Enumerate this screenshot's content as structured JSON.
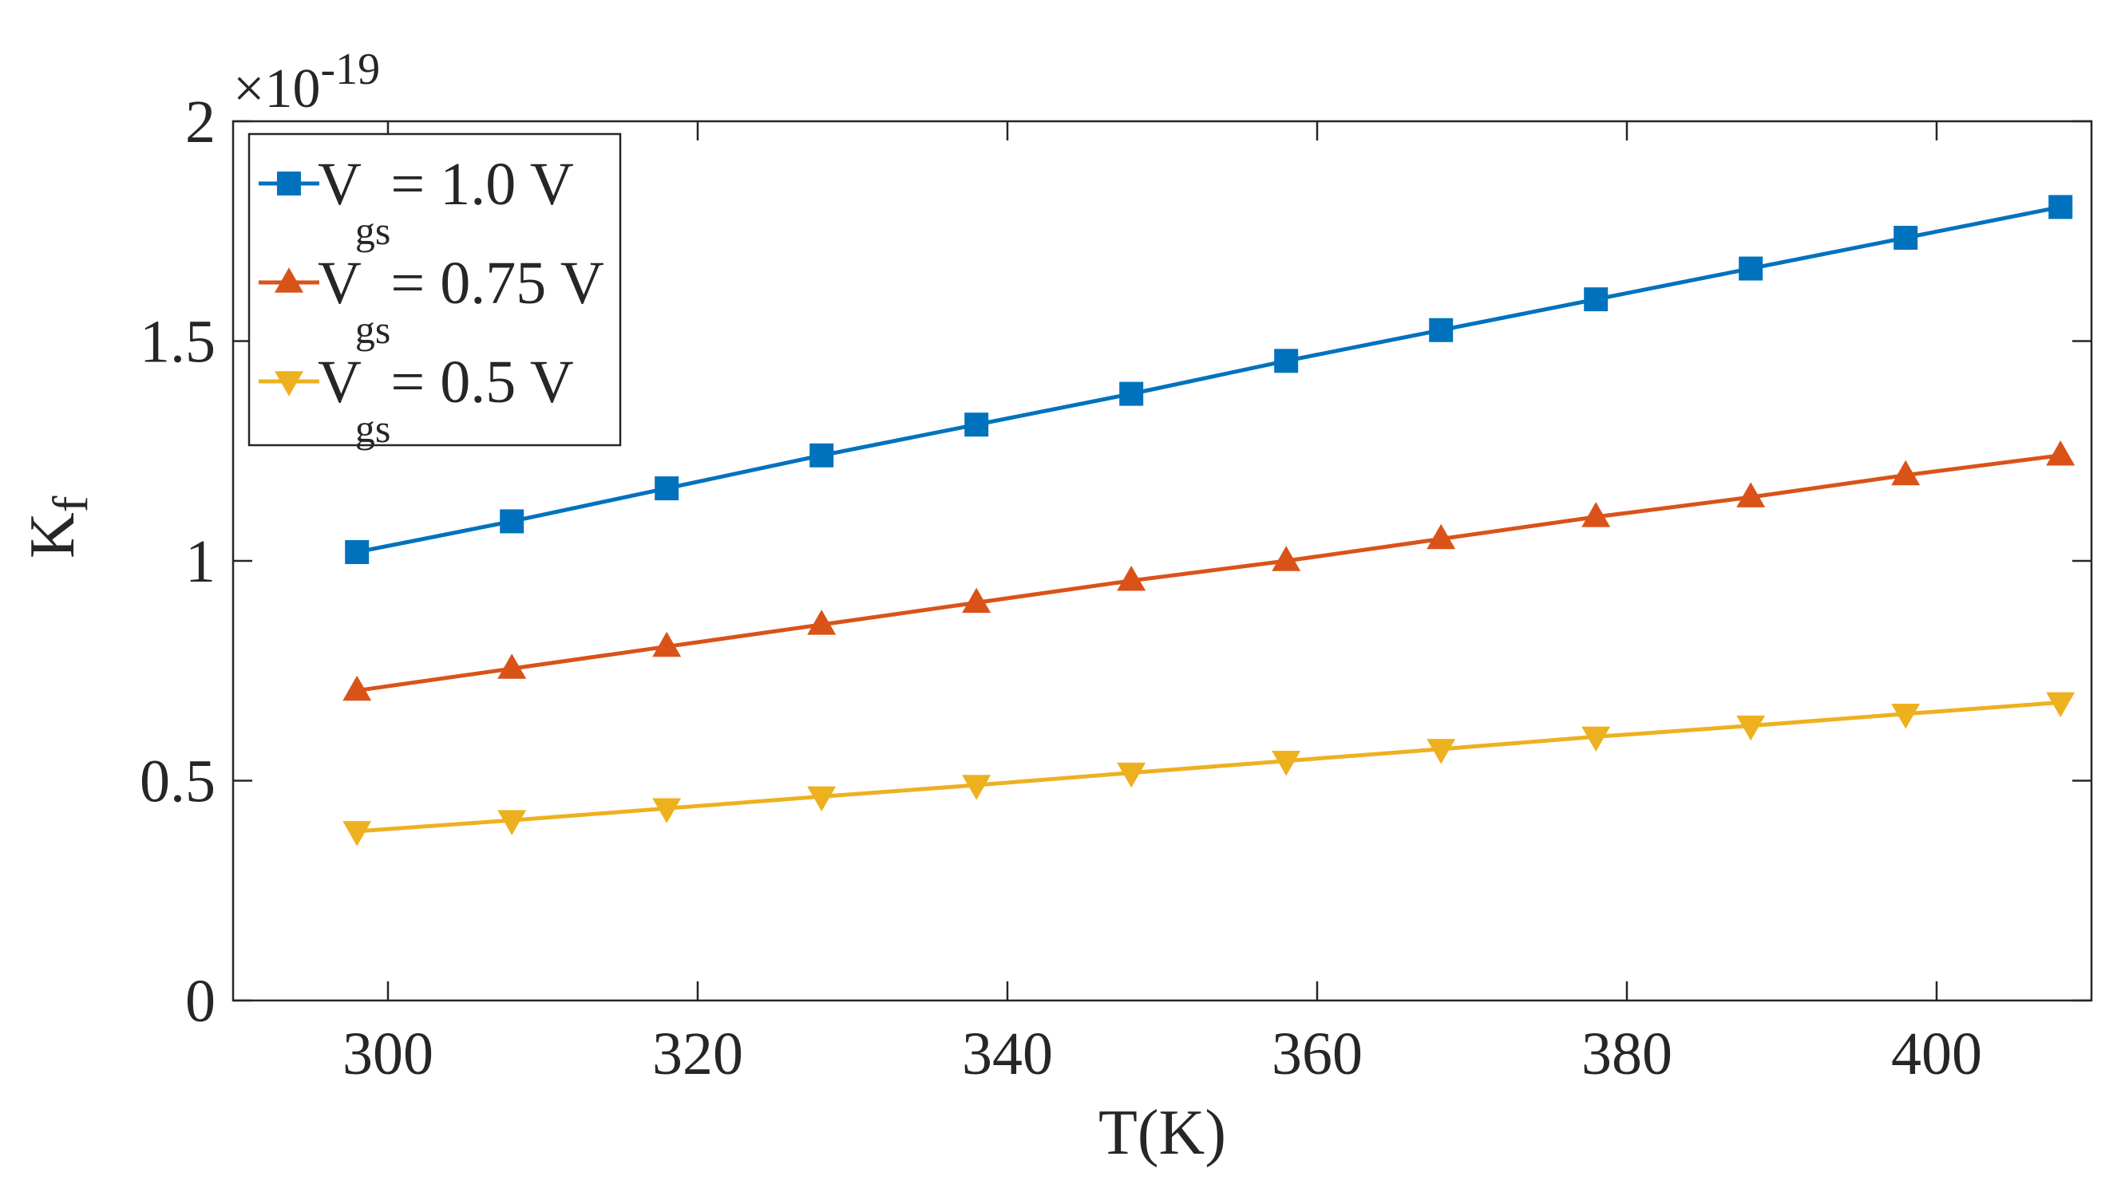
{
  "chart_data": {
    "type": "line",
    "title": "",
    "xlabel": "T(K)",
    "ylabel_main": "K",
    "ylabel_sub": "f",
    "exponent_label": {
      "prefix": "×10",
      "power": "-19"
    },
    "xlim": [
      290,
      410
    ],
    "ylim": [
      0,
      2
    ],
    "xticks": [
      300,
      320,
      340,
      360,
      380,
      400
    ],
    "yticks": [
      0,
      0.5,
      1,
      1.5,
      2
    ],
    "ytick_labels": [
      "0",
      "0.5",
      "1",
      "1.5",
      "2"
    ],
    "legend_position": "top-left",
    "grid": false,
    "x": [
      298,
      308,
      318,
      328,
      338,
      348,
      358,
      368,
      378,
      388,
      398,
      408
    ],
    "series": [
      {
        "name": "Vgs = 1.0 V",
        "label_main": "V",
        "label_sub": "gs",
        "label_rest": "= 1.0 V",
        "color": "#0072BD",
        "marker": "square",
        "values": [
          1.02,
          1.09,
          1.165,
          1.24,
          1.31,
          1.38,
          1.455,
          1.525,
          1.595,
          1.665,
          1.735,
          1.805
        ]
      },
      {
        "name": "Vgs = 0.75 V",
        "label_main": "V",
        "label_sub": "gs",
        "label_rest": "= 0.75 V",
        "color": "#D95319",
        "marker": "triangle-up",
        "values": [
          0.705,
          0.755,
          0.805,
          0.855,
          0.905,
          0.955,
          1.0,
          1.05,
          1.1,
          1.145,
          1.195,
          1.24
        ]
      },
      {
        "name": "Vgs = 0.5 V",
        "label_main": "V",
        "label_sub": "gs",
        "label_rest": "= 0.5 V",
        "color": "#EDB120",
        "marker": "triangle-down",
        "values": [
          0.385,
          0.41,
          0.437,
          0.464,
          0.49,
          0.518,
          0.545,
          0.572,
          0.6,
          0.625,
          0.652,
          0.678
        ]
      }
    ]
  }
}
